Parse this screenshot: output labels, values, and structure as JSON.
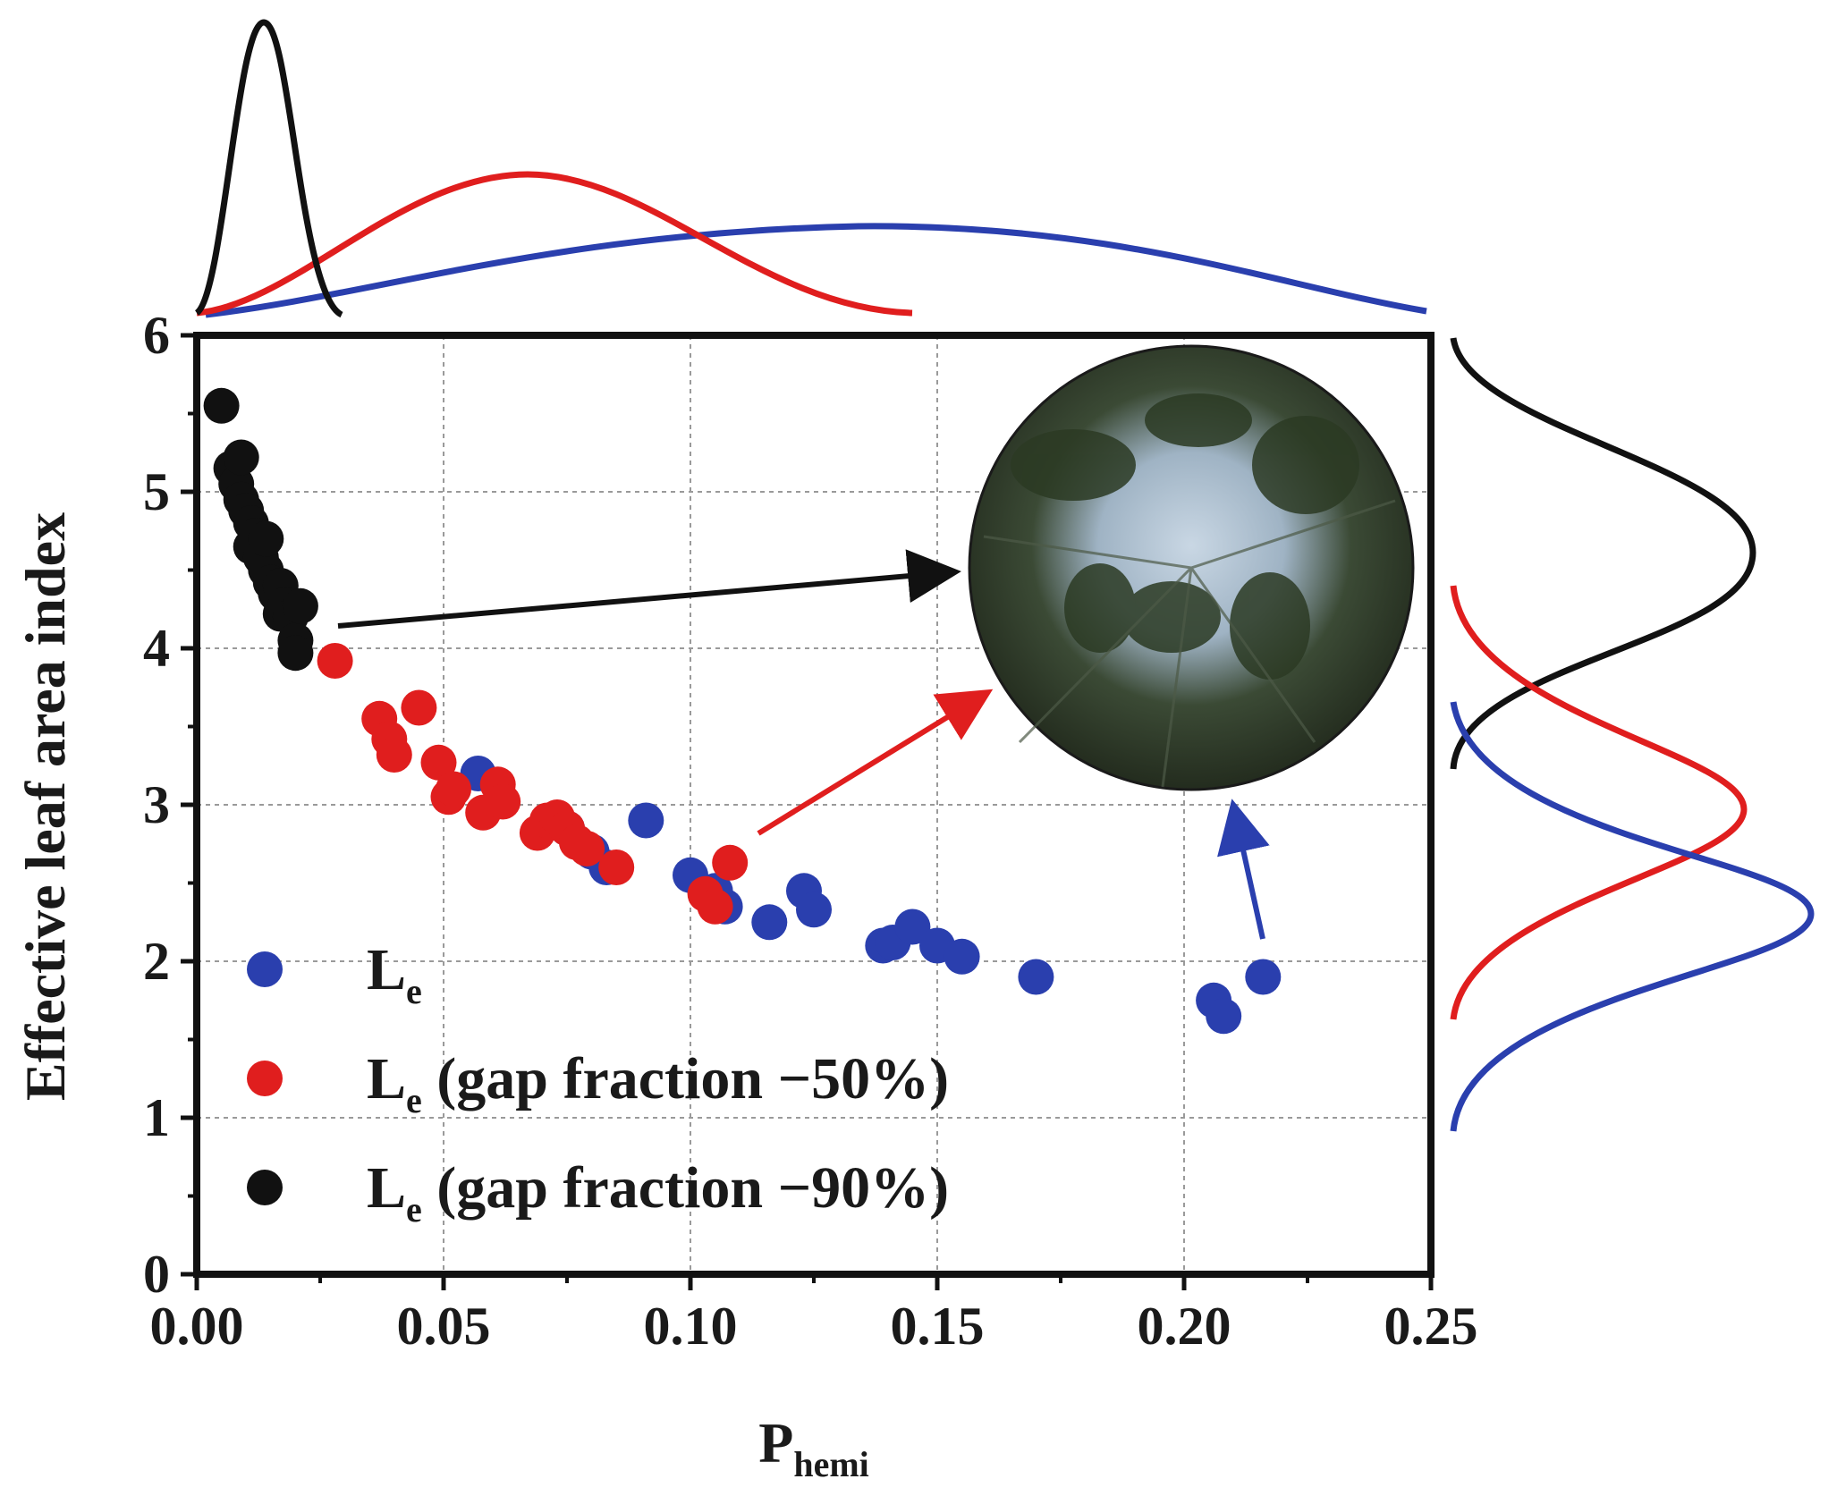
{
  "chart_data": {
    "type": "scatter",
    "xlabel": "P",
    "xlabel_sub": "hemi",
    "ylabel": "Effective leaf area index",
    "xlim": [
      0,
      0.25
    ],
    "ylim": [
      0,
      6
    ],
    "x_ticks": [
      "0.00",
      "0.05",
      "0.10",
      "0.15",
      "0.20",
      "0.25"
    ],
    "y_ticks": [
      "0",
      "1",
      "2",
      "3",
      "4",
      "5",
      "6"
    ],
    "grid": true,
    "legend_position": "bottom-left",
    "colors": {
      "blue": "#2a3fae",
      "red": "#e01e1e",
      "black": "#111111",
      "inset": "#24301f"
    },
    "series": [
      {
        "name": "L",
        "name_sub": "e",
        "name_suffix": "",
        "color": "#2a3fae",
        "points": [
          [
            0.057,
            3.2
          ],
          [
            0.075,
            2.85
          ],
          [
            0.08,
            2.7
          ],
          [
            0.083,
            2.6
          ],
          [
            0.091,
            2.9
          ],
          [
            0.1,
            2.55
          ],
          [
            0.105,
            2.45
          ],
          [
            0.107,
            2.35
          ],
          [
            0.116,
            2.25
          ],
          [
            0.123,
            2.45
          ],
          [
            0.125,
            2.33
          ],
          [
            0.139,
            2.1
          ],
          [
            0.141,
            2.12
          ],
          [
            0.145,
            2.22
          ],
          [
            0.15,
            2.1
          ],
          [
            0.155,
            2.03
          ],
          [
            0.17,
            1.9
          ],
          [
            0.206,
            1.75
          ],
          [
            0.208,
            1.65
          ],
          [
            0.216,
            1.9
          ]
        ]
      },
      {
        "name": "L",
        "name_sub": "e",
        "name_suffix": " (gap fraction −50%)",
        "color": "#e01e1e",
        "points": [
          [
            0.028,
            3.92
          ],
          [
            0.037,
            3.55
          ],
          [
            0.039,
            3.42
          ],
          [
            0.04,
            3.32
          ],
          [
            0.045,
            3.62
          ],
          [
            0.049,
            3.27
          ],
          [
            0.051,
            3.05
          ],
          [
            0.052,
            3.1
          ],
          [
            0.058,
            2.95
          ],
          [
            0.061,
            3.13
          ],
          [
            0.062,
            3.02
          ],
          [
            0.069,
            2.82
          ],
          [
            0.071,
            2.9
          ],
          [
            0.073,
            2.92
          ],
          [
            0.075,
            2.85
          ],
          [
            0.077,
            2.76
          ],
          [
            0.079,
            2.72
          ],
          [
            0.085,
            2.6
          ],
          [
            0.103,
            2.43
          ],
          [
            0.105,
            2.35
          ],
          [
            0.108,
            2.63
          ]
        ]
      },
      {
        "name": "L",
        "name_sub": "e",
        "name_suffix": " (gap fraction −90%)",
        "color": "#111111",
        "points": [
          [
            0.005,
            5.55
          ],
          [
            0.007,
            5.15
          ],
          [
            0.008,
            5.05
          ],
          [
            0.009,
            4.95
          ],
          [
            0.009,
            5.22
          ],
          [
            0.01,
            4.88
          ],
          [
            0.011,
            4.8
          ],
          [
            0.011,
            4.65
          ],
          [
            0.012,
            4.72
          ],
          [
            0.013,
            4.58
          ],
          [
            0.014,
            4.5
          ],
          [
            0.014,
            4.7
          ],
          [
            0.015,
            4.42
          ],
          [
            0.016,
            4.35
          ],
          [
            0.017,
            4.4
          ],
          [
            0.017,
            4.22
          ],
          [
            0.018,
            4.28
          ],
          [
            0.019,
            4.2
          ],
          [
            0.02,
            4.05
          ],
          [
            0.021,
            4.27
          ],
          [
            0.02,
            3.97
          ]
        ]
      }
    ]
  }
}
